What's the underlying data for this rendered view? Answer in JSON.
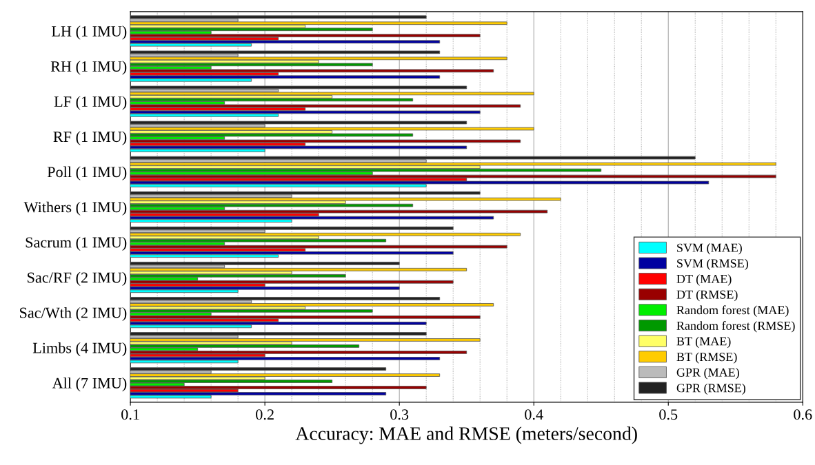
{
  "chart_data": {
    "type": "bar",
    "orientation": "horizontal",
    "xlabel": "Accuracy: MAE and RMSE (meters/second)",
    "categories": [
      "LH (1 IMU)",
      "RH (1 IMU)",
      "LF (1 IMU)",
      "RF (1 IMU)",
      "Poll (1 IMU)",
      "Withers (1 IMU)",
      "Sacrum (1 IMU)",
      "Sac/RF (2 IMU)",
      "Sac/Wth (2 IMU)",
      "Limbs (4 IMU)",
      "All (7 IMU)"
    ],
    "series": [
      {
        "name": "SVM (MAE)",
        "color": "#00ffff",
        "values": [
          0.19,
          0.19,
          0.21,
          0.2,
          0.32,
          0.22,
          0.21,
          0.18,
          0.19,
          0.18,
          0.16
        ]
      },
      {
        "name": "SVM (RMSE)",
        "color": "#0000a0",
        "values": [
          0.33,
          0.33,
          0.36,
          0.35,
          0.53,
          0.37,
          0.34,
          0.3,
          0.32,
          0.33,
          0.29
        ]
      },
      {
        "name": "DT (MAE)",
        "color": "#ff0000",
        "values": [
          0.21,
          0.21,
          0.23,
          0.23,
          0.35,
          0.24,
          0.23,
          0.2,
          0.21,
          0.2,
          0.18
        ]
      },
      {
        "name": "DT (RMSE)",
        "color": "#990000",
        "values": [
          0.36,
          0.37,
          0.39,
          0.39,
          0.58,
          0.41,
          0.38,
          0.34,
          0.36,
          0.35,
          0.32
        ]
      },
      {
        "name": "Random forest (MAE)",
        "color": "#00ee00",
        "values": [
          0.16,
          0.16,
          0.17,
          0.17,
          0.28,
          0.17,
          0.17,
          0.15,
          0.16,
          0.15,
          0.14
        ]
      },
      {
        "name": "Random forest (RMSE)",
        "color": "#009900",
        "values": [
          0.28,
          0.28,
          0.31,
          0.31,
          0.45,
          0.31,
          0.29,
          0.26,
          0.28,
          0.27,
          0.25
        ]
      },
      {
        "name": "BT (MAE)",
        "color": "#ffff66",
        "values": [
          0.23,
          0.24,
          0.25,
          0.25,
          0.36,
          0.26,
          0.24,
          0.22,
          0.23,
          0.22,
          0.2
        ]
      },
      {
        "name": "BT (RMSE)",
        "color": "#ffcc00",
        "values": [
          0.38,
          0.38,
          0.4,
          0.4,
          0.58,
          0.42,
          0.39,
          0.35,
          0.37,
          0.36,
          0.33
        ]
      },
      {
        "name": "GPR (MAE)",
        "color": "#bbbbbb",
        "values": [
          0.18,
          0.18,
          0.21,
          0.2,
          0.32,
          0.22,
          0.2,
          0.17,
          0.19,
          0.18,
          0.16
        ]
      },
      {
        "name": "GPR (RMSE)",
        "color": "#222222",
        "values": [
          0.32,
          0.33,
          0.35,
          0.35,
          0.52,
          0.36,
          0.34,
          0.3,
          0.33,
          0.32,
          0.29
        ]
      }
    ],
    "xlim": [
      0.1,
      0.6
    ],
    "xticks": [
      0.1,
      0.2,
      0.3,
      0.4,
      0.5,
      0.6
    ],
    "grid": "x",
    "legend": "bottom right"
  }
}
